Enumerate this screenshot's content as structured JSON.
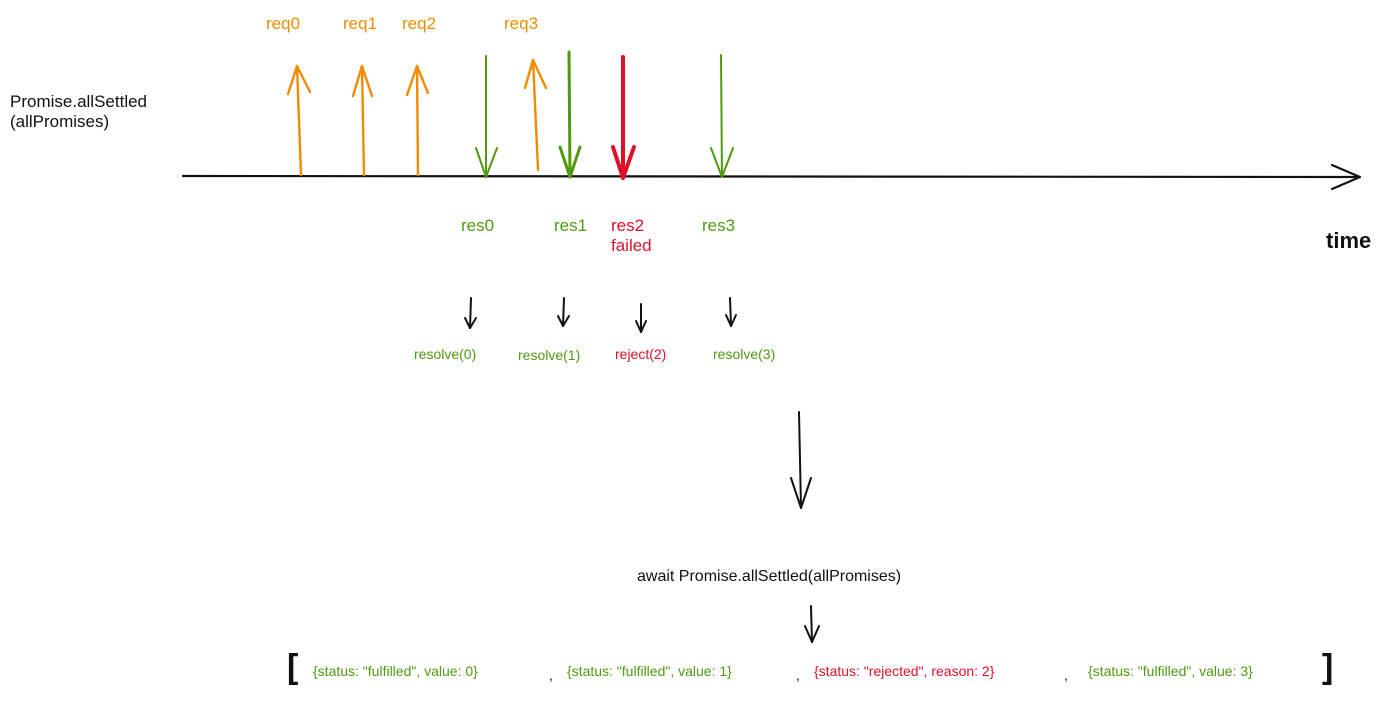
{
  "caller": {
    "line1": "Promise.allSettled",
    "line2": "(allPromises)"
  },
  "axis_label": "time",
  "requests": [
    "req0",
    "req1",
    "req2",
    "req3"
  ],
  "responses": [
    {
      "label": "res0",
      "status": "ok"
    },
    {
      "label": "res1",
      "status": "ok"
    },
    {
      "label": "res2",
      "sublabel": "failed",
      "status": "failed"
    },
    {
      "label": "res3",
      "status": "ok"
    }
  ],
  "settle_calls": [
    "resolve(0)",
    "resolve(1)",
    "reject(2)",
    "resolve(3)"
  ],
  "await_expression": "await Promise.allSettled(allPromises)",
  "result": {
    "open": "[",
    "close": "]",
    "items": [
      "{status: \"fulfilled\", value: 0}",
      "{status: \"fulfilled\", value: 1}",
      "{status: \"rejected\", reason: 2}",
      "{status: \"fulfilled\", value: 3}"
    ],
    "separator": ","
  },
  "colors": {
    "request": "#f08c00",
    "resolved": "#4f9a0f",
    "rejected": "#e0102b",
    "ink": "#111111"
  }
}
